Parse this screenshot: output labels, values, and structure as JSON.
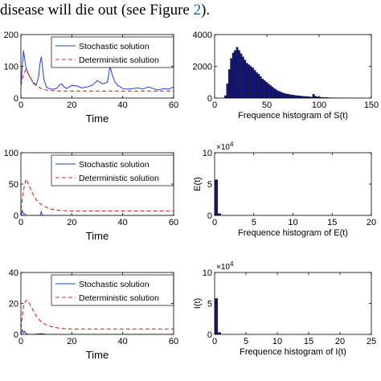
{
  "caption": {
    "text": "disease will die out (see Figure ",
    "ref": "2",
    "tail": ")."
  },
  "legend": {
    "stochastic": "Stochastic solution",
    "deterministic": "Deterministic solution"
  },
  "colors": {
    "stochastic": "#1f3fcc",
    "deterministic": "#d62728",
    "hist": "#16177a"
  },
  "chart_data": [
    {
      "id": "s-time",
      "type": "line",
      "xlabel": "Time",
      "ylabel": "",
      "xlim": [
        0,
        60
      ],
      "ylim": [
        0,
        200
      ],
      "xticks": [
        "0",
        "20",
        "40",
        "60"
      ],
      "yticks": [
        "0",
        "100",
        "200"
      ],
      "series": [
        {
          "name": "Stochastic solution",
          "x": [
            0,
            1,
            2,
            3,
            4,
            5,
            6,
            7,
            7.5,
            8,
            8.5,
            9,
            10,
            11,
            12,
            13,
            14,
            15,
            16,
            17,
            18,
            19,
            20,
            22,
            24,
            26,
            28,
            30,
            32,
            34,
            35,
            36,
            37,
            38,
            39,
            40,
            42,
            44,
            46,
            48,
            50,
            52,
            54,
            56,
            58,
            60
          ],
          "y": [
            40,
            150,
            95,
            75,
            60,
            45,
            40,
            70,
            110,
            130,
            100,
            60,
            35,
            30,
            28,
            28,
            30,
            40,
            45,
            35,
            30,
            35,
            40,
            38,
            32,
            35,
            40,
            55,
            45,
            50,
            100,
            70,
            50,
            40,
            35,
            30,
            28,
            30,
            32,
            28,
            35,
            30,
            25,
            30,
            28,
            35
          ]
        },
        {
          "name": "Deterministic solution",
          "x": [
            0,
            1,
            2,
            4,
            6,
            8,
            10,
            15,
            20,
            30,
            40,
            50,
            60
          ],
          "y": [
            40,
            75,
            90,
            60,
            40,
            30,
            25,
            22,
            22,
            22,
            22,
            22,
            22
          ]
        }
      ]
    },
    {
      "id": "s-hist",
      "type": "bar",
      "xlabel": "Frequence histogram of S(t)",
      "ylabel": "",
      "xlim": [
        0,
        160
      ],
      "ylim": [
        0,
        4000
      ],
      "xticks": [
        "0",
        "50",
        "100",
        "150"
      ],
      "yticks": [
        "0",
        "2000",
        "4000"
      ],
      "bins": [
        [
          10,
          150
        ],
        [
          12,
          900
        ],
        [
          14,
          1800
        ],
        [
          16,
          2500
        ],
        [
          18,
          2850
        ],
        [
          20,
          3000
        ],
        [
          22,
          3200
        ],
        [
          24,
          3000
        ],
        [
          26,
          2800
        ],
        [
          28,
          2600
        ],
        [
          30,
          2400
        ],
        [
          32,
          2200
        ],
        [
          34,
          2100
        ],
        [
          36,
          2000
        ],
        [
          38,
          1900
        ],
        [
          40,
          1750
        ],
        [
          42,
          1600
        ],
        [
          44,
          1500
        ],
        [
          46,
          1350
        ],
        [
          48,
          1200
        ],
        [
          50,
          1100
        ],
        [
          52,
          1000
        ],
        [
          54,
          900
        ],
        [
          56,
          800
        ],
        [
          58,
          700
        ],
        [
          60,
          600
        ],
        [
          62,
          520
        ],
        [
          64,
          450
        ],
        [
          66,
          400
        ],
        [
          68,
          350
        ],
        [
          70,
          300
        ],
        [
          72,
          270
        ],
        [
          74,
          250
        ],
        [
          76,
          220
        ],
        [
          78,
          200
        ],
        [
          80,
          180
        ],
        [
          82,
          160
        ],
        [
          84,
          150
        ],
        [
          86,
          140
        ],
        [
          88,
          120
        ],
        [
          90,
          110
        ],
        [
          92,
          100
        ],
        [
          94,
          90
        ],
        [
          96,
          80
        ],
        [
          98,
          70
        ],
        [
          100,
          250
        ],
        [
          102,
          120
        ],
        [
          104,
          80
        ],
        [
          106,
          60
        ],
        [
          108,
          50
        ],
        [
          110,
          40
        ],
        [
          112,
          35
        ],
        [
          114,
          30
        ],
        [
          116,
          25
        ],
        [
          118,
          20
        ],
        [
          120,
          18
        ],
        [
          122,
          15
        ],
        [
          124,
          12
        ],
        [
          126,
          10
        ],
        [
          128,
          8
        ],
        [
          130,
          6
        ],
        [
          132,
          5
        ],
        [
          134,
          4
        ],
        [
          136,
          3
        ],
        [
          138,
          3
        ],
        [
          140,
          2
        ],
        [
          142,
          2
        ],
        [
          144,
          1
        ],
        [
          146,
          1
        ],
        [
          148,
          1
        ],
        [
          150,
          1
        ]
      ],
      "bin_width": 2
    },
    {
      "id": "e-time",
      "type": "line",
      "xlabel": "Time",
      "ylabel": "",
      "xlim": [
        0,
        60
      ],
      "ylim": [
        0,
        100
      ],
      "xticks": [
        "0",
        "20",
        "40",
        "60"
      ],
      "yticks": [
        "0",
        "50",
        "100"
      ],
      "series": [
        {
          "name": "Stochastic solution",
          "x": [
            0,
            0.5,
            1,
            1.5,
            2,
            3,
            4,
            6,
            7.5,
            8,
            8.5,
            10,
            20,
            30,
            40,
            50,
            60
          ],
          "y": [
            0,
            8,
            2,
            3,
            0,
            0,
            0,
            0,
            0,
            6,
            0,
            0,
            0,
            0,
            0,
            0,
            0
          ]
        },
        {
          "name": "Deterministic solution",
          "x": [
            0,
            1,
            2,
            3,
            4,
            5,
            6,
            8,
            10,
            12,
            15,
            20,
            25,
            30,
            40,
            50,
            60
          ],
          "y": [
            10,
            40,
            58,
            50,
            40,
            32,
            25,
            17,
            13,
            10,
            8,
            7,
            7,
            7,
            7,
            7,
            7
          ]
        }
      ]
    },
    {
      "id": "e-hist",
      "type": "bar",
      "xlabel": "Frequence histogram of E(t)",
      "ylabel": "E(t)",
      "exponent": "×10",
      "exponent_power": "4",
      "xlim": [
        0,
        20
      ],
      "ylim": [
        0,
        10
      ],
      "xticks": [
        "0",
        "5",
        "10",
        "15",
        "20"
      ],
      "yticks": [
        "0",
        "5",
        "10"
      ],
      "bins": [
        [
          0,
          5.7
        ],
        [
          0.4,
          0.3
        ]
      ],
      "bin_width": 0.4
    },
    {
      "id": "i-time",
      "type": "line",
      "xlabel": "Time",
      "ylabel": "",
      "xlim": [
        0,
        60
      ],
      "ylim": [
        0,
        40
      ],
      "xticks": [
        "0",
        "20",
        "40",
        "60"
      ],
      "yticks": [
        "0",
        "20",
        "40"
      ],
      "series": [
        {
          "name": "Stochastic solution",
          "x": [
            0,
            0.5,
            1,
            1.5,
            2,
            3,
            5,
            8,
            10,
            20,
            30,
            40,
            50,
            60
          ],
          "y": [
            0,
            3,
            1,
            2,
            0.5,
            0,
            0,
            0.5,
            0,
            0,
            0,
            0,
            0,
            0
          ]
        },
        {
          "name": "Deterministic solution",
          "x": [
            0,
            1,
            2,
            3,
            4,
            5,
            6,
            8,
            10,
            12,
            15,
            20,
            25,
            30,
            40,
            50,
            60
          ],
          "y": [
            4,
            18,
            22,
            21,
            18,
            15,
            12,
            8,
            6,
            5,
            4,
            3.5,
            3.5,
            3.5,
            3.5,
            3.5,
            3.5
          ]
        }
      ]
    },
    {
      "id": "i-hist",
      "type": "bar",
      "xlabel": "Frequence histogram of I(t)",
      "ylabel": "I(t)",
      "exponent": "×10",
      "exponent_power": "4",
      "xlim": [
        0,
        25
      ],
      "ylim": [
        0,
        10
      ],
      "xticks": [
        "0",
        "5",
        "10",
        "15",
        "20",
        "25"
      ],
      "yticks": [
        "0",
        "5",
        "10"
      ],
      "bins": [
        [
          0,
          5.8
        ],
        [
          0.5,
          0.3
        ]
      ],
      "bin_width": 0.5
    }
  ]
}
